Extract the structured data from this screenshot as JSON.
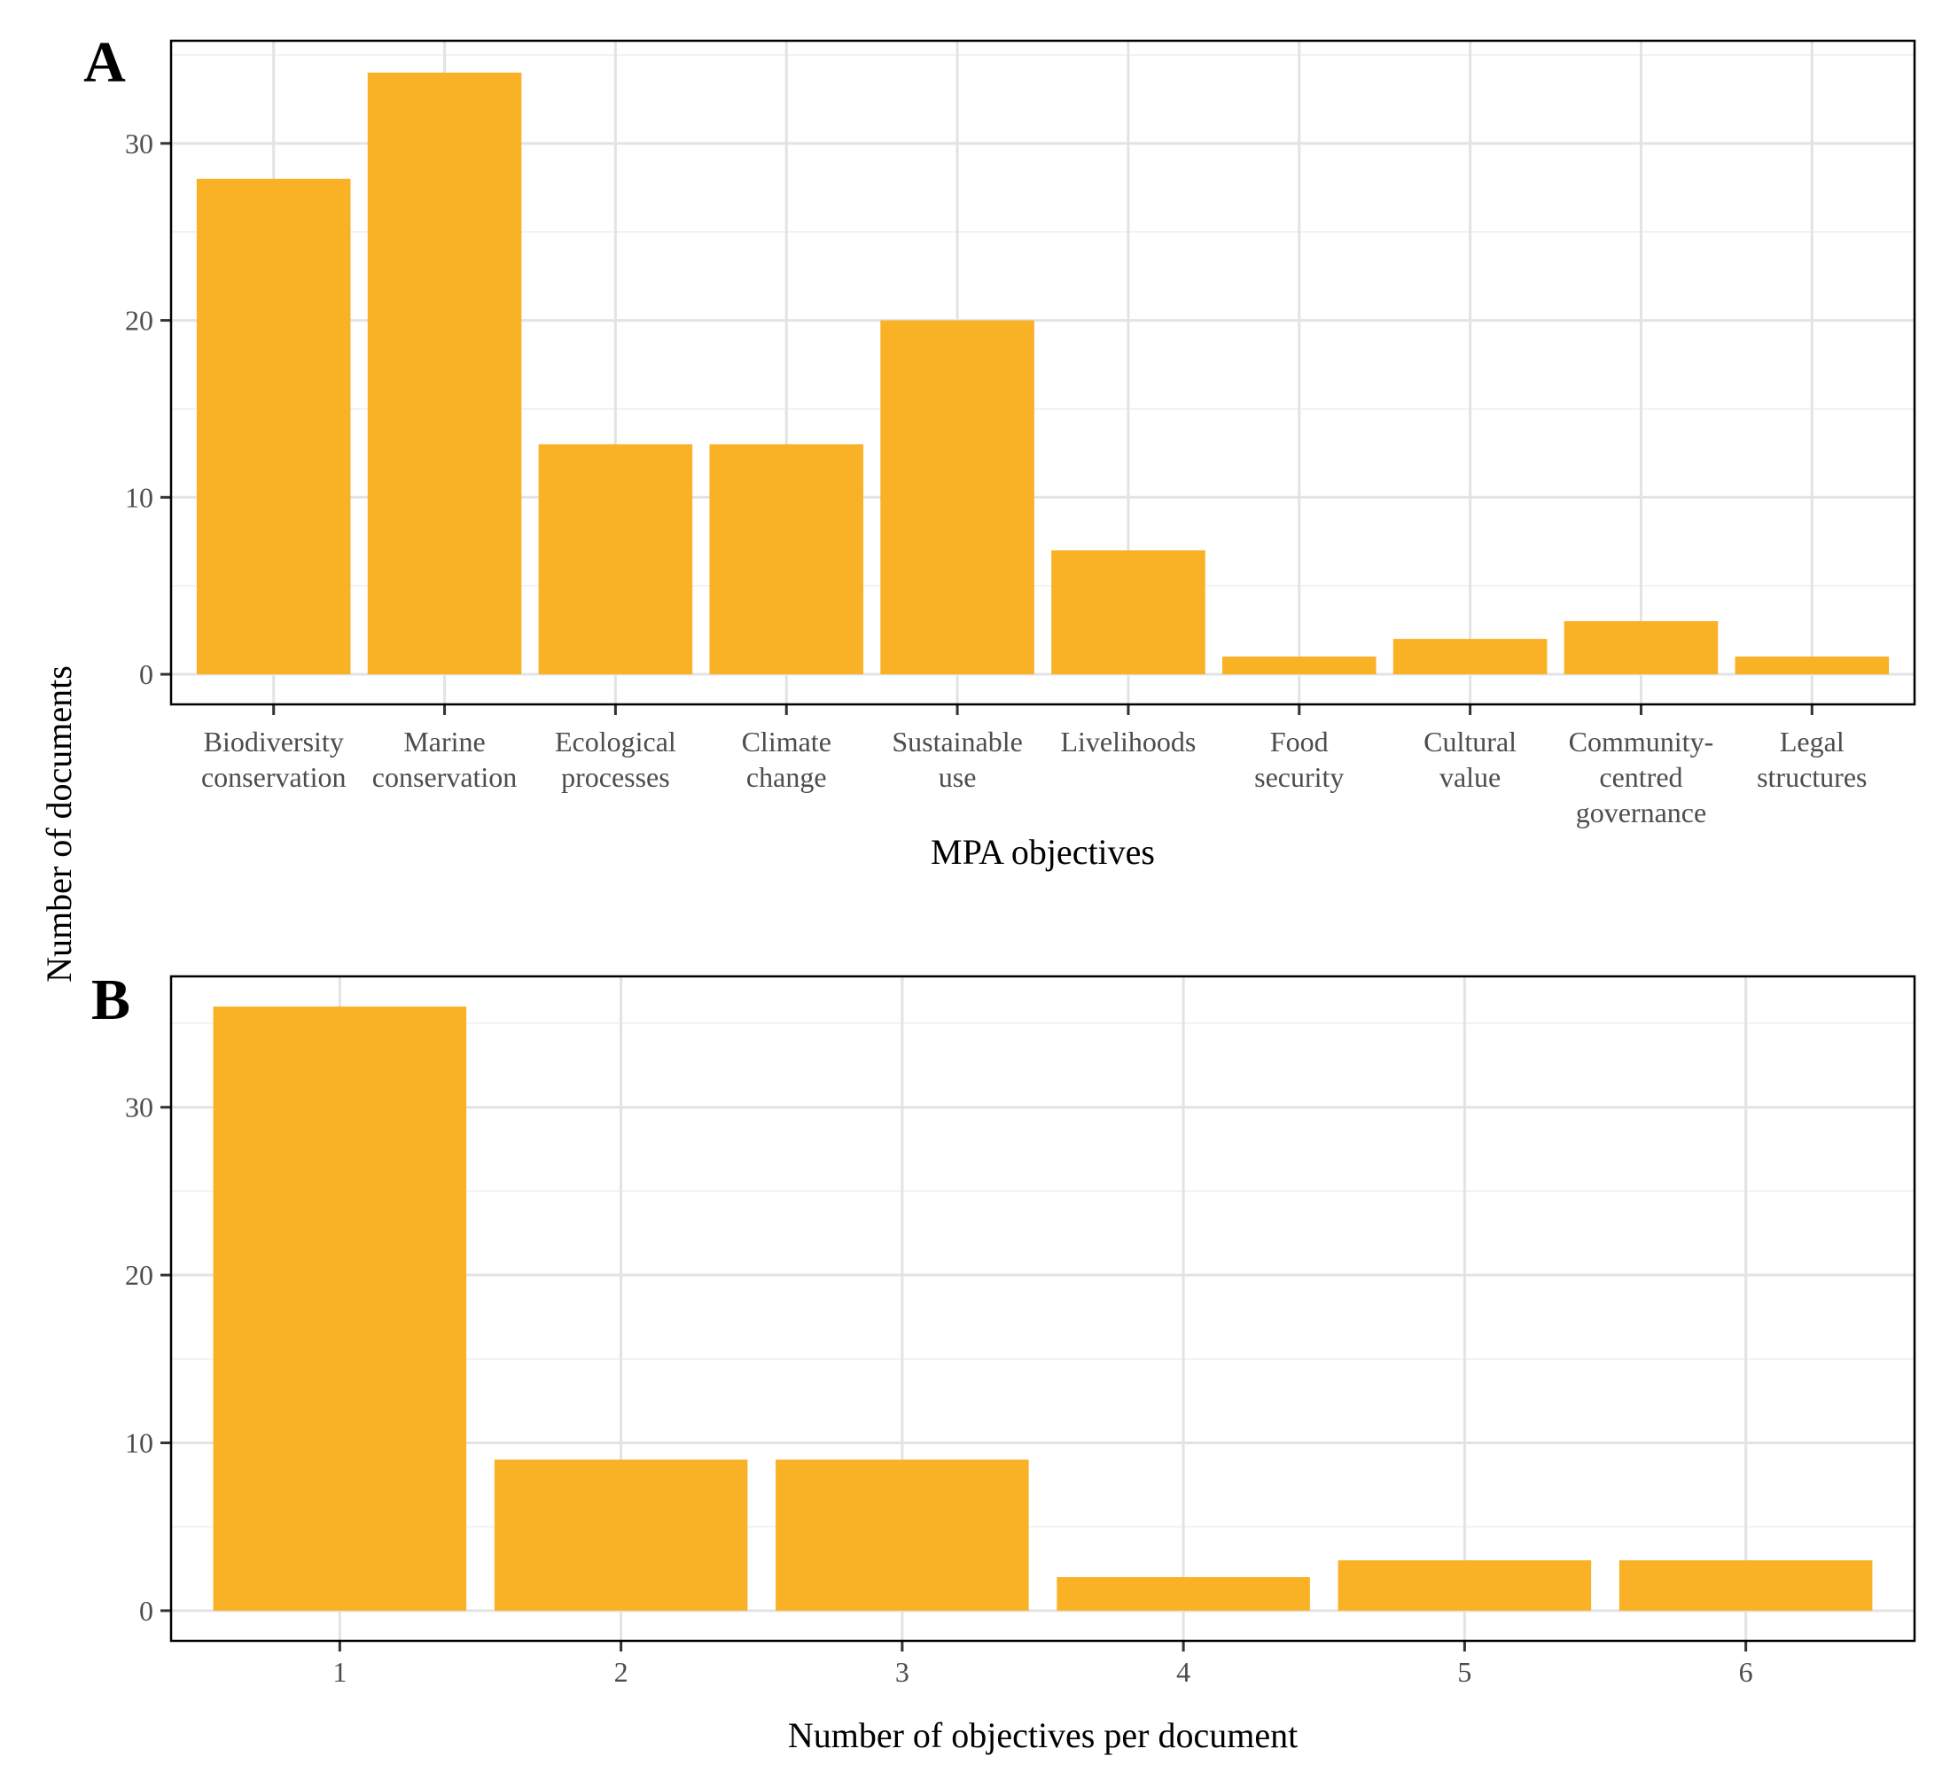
{
  "figure": {
    "shared_ylabel": "Number of documents",
    "bar_color": "#F9B125",
    "grid_color": "#e3e3e3"
  },
  "chart_data": [
    {
      "panel": "A",
      "type": "bar",
      "xlabel": "MPA objectives",
      "ylabel": "Number of documents",
      "categories": [
        [
          "Biodiversity",
          "conservation"
        ],
        [
          "Marine",
          "conservation"
        ],
        [
          "Ecological",
          "processes"
        ],
        [
          "Climate",
          "change"
        ],
        [
          "Sustainable",
          "use"
        ],
        [
          "Livelihoods"
        ],
        [
          "Food",
          "security"
        ],
        [
          "Cultural",
          "value"
        ],
        [
          "Community-",
          "centred",
          "governance"
        ],
        [
          "Legal",
          "structures"
        ]
      ],
      "values": [
        28,
        34,
        13,
        13,
        20,
        7,
        1,
        2,
        3,
        1
      ],
      "ylim": [
        -1.7,
        35.8
      ],
      "yticks": [
        0,
        10,
        20,
        30
      ],
      "grid": true
    },
    {
      "panel": "B",
      "type": "bar",
      "xlabel": "Number of objectives per document",
      "ylabel": "Number of documents",
      "categories": [
        "1",
        "2",
        "3",
        "4",
        "5",
        "6"
      ],
      "values": [
        36,
        9,
        9,
        2,
        3,
        3
      ],
      "ylim": [
        -1.8,
        37.8
      ],
      "yticks": [
        0,
        10,
        20,
        30
      ],
      "grid": true
    }
  ]
}
